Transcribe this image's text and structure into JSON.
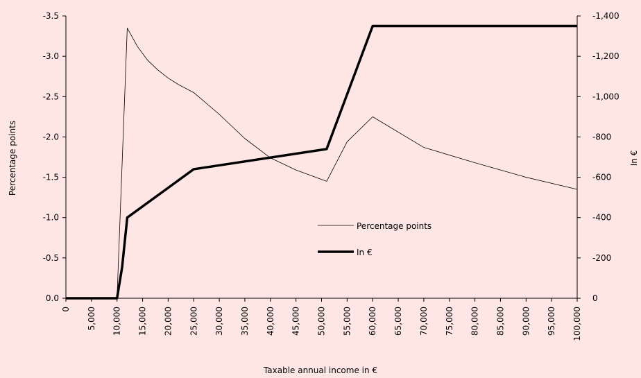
{
  "chart_data": {
    "type": "line",
    "xlabel": "Taxable annual income in €",
    "ylabel": "Percentage points",
    "y2label": "In €",
    "xlim": [
      0,
      100000
    ],
    "xticks": [
      0,
      {
        "value": 5000,
        "label": "5,000"
      },
      {
        "value": 10000,
        "label": "10,000"
      },
      {
        "value": 15000,
        "label": "15,000"
      },
      {
        "value": 20000,
        "label": "20,000"
      },
      {
        "value": 25000,
        "label": "25,000"
      },
      {
        "value": 30000,
        "label": "30,000"
      },
      {
        "value": 35000,
        "label": "35,000"
      },
      {
        "value": 40000,
        "label": "40,000"
      },
      {
        "value": 45000,
        "label": "45,000"
      },
      {
        "value": 50000,
        "label": "50,000"
      },
      {
        "value": 55000,
        "label": "55,000"
      },
      {
        "value": 60000,
        "label": "60,000"
      },
      {
        "value": 65000,
        "label": "65,000"
      },
      {
        "value": 70000,
        "label": "70,000"
      },
      {
        "value": 75000,
        "label": "75,000"
      },
      {
        "value": 80000,
        "label": "80,000"
      },
      {
        "value": 85000,
        "label": "85,000"
      },
      {
        "value": 90000,
        "label": "90,000"
      },
      {
        "value": 95000,
        "label": "95,000"
      },
      {
        "value": 100000,
        "label": "100,000"
      }
    ],
    "ylim": [
      0,
      -3.5
    ],
    "yticks": [
      {
        "value": 0,
        "label": "0.0"
      },
      -0.5,
      {
        "value": -1,
        "label": "-1.0"
      },
      -1.5,
      {
        "value": -2,
        "label": "-2.0"
      },
      -2.5,
      {
        "value": -3,
        "label": "-3.0"
      },
      -3.5
    ],
    "y2lim": [
      0,
      -1400
    ],
    "y2ticks": [
      0,
      -200,
      -400,
      -600,
      -800,
      {
        "value": -1000,
        "label": "-1,000"
      },
      {
        "value": -1200,
        "label": "-1,200"
      },
      {
        "value": -1400,
        "label": "-1,400"
      }
    ],
    "series": [
      {
        "name": "Percentage points",
        "color": "#000000",
        "line_width": 0.8,
        "x": [
          0,
          10000,
          12000,
          14000,
          16000,
          18000,
          20000,
          22000,
          25000,
          30000,
          35000,
          40000,
          45000,
          51000,
          55000,
          60000,
          70000,
          80000,
          90000,
          100000
        ],
        "values": [
          0,
          0,
          -3.35,
          -3.12,
          -2.95,
          -2.83,
          -2.73,
          -2.65,
          -2.55,
          -2.28,
          -1.98,
          -1.74,
          -1.59,
          -1.45,
          -1.94,
          -2.25,
          -1.87,
          -1.68,
          -1.5,
          -1.35
        ]
      },
      {
        "name": "In €",
        "color": "#000000",
        "line_width": 3.5,
        "axis": "y2",
        "x": [
          0,
          10000,
          11000,
          12000,
          25000,
          51000,
          60000,
          100000
        ],
        "values": [
          0,
          0,
          -155,
          -400,
          -640,
          -740,
          -1350,
          -1350
        ]
      }
    ]
  }
}
